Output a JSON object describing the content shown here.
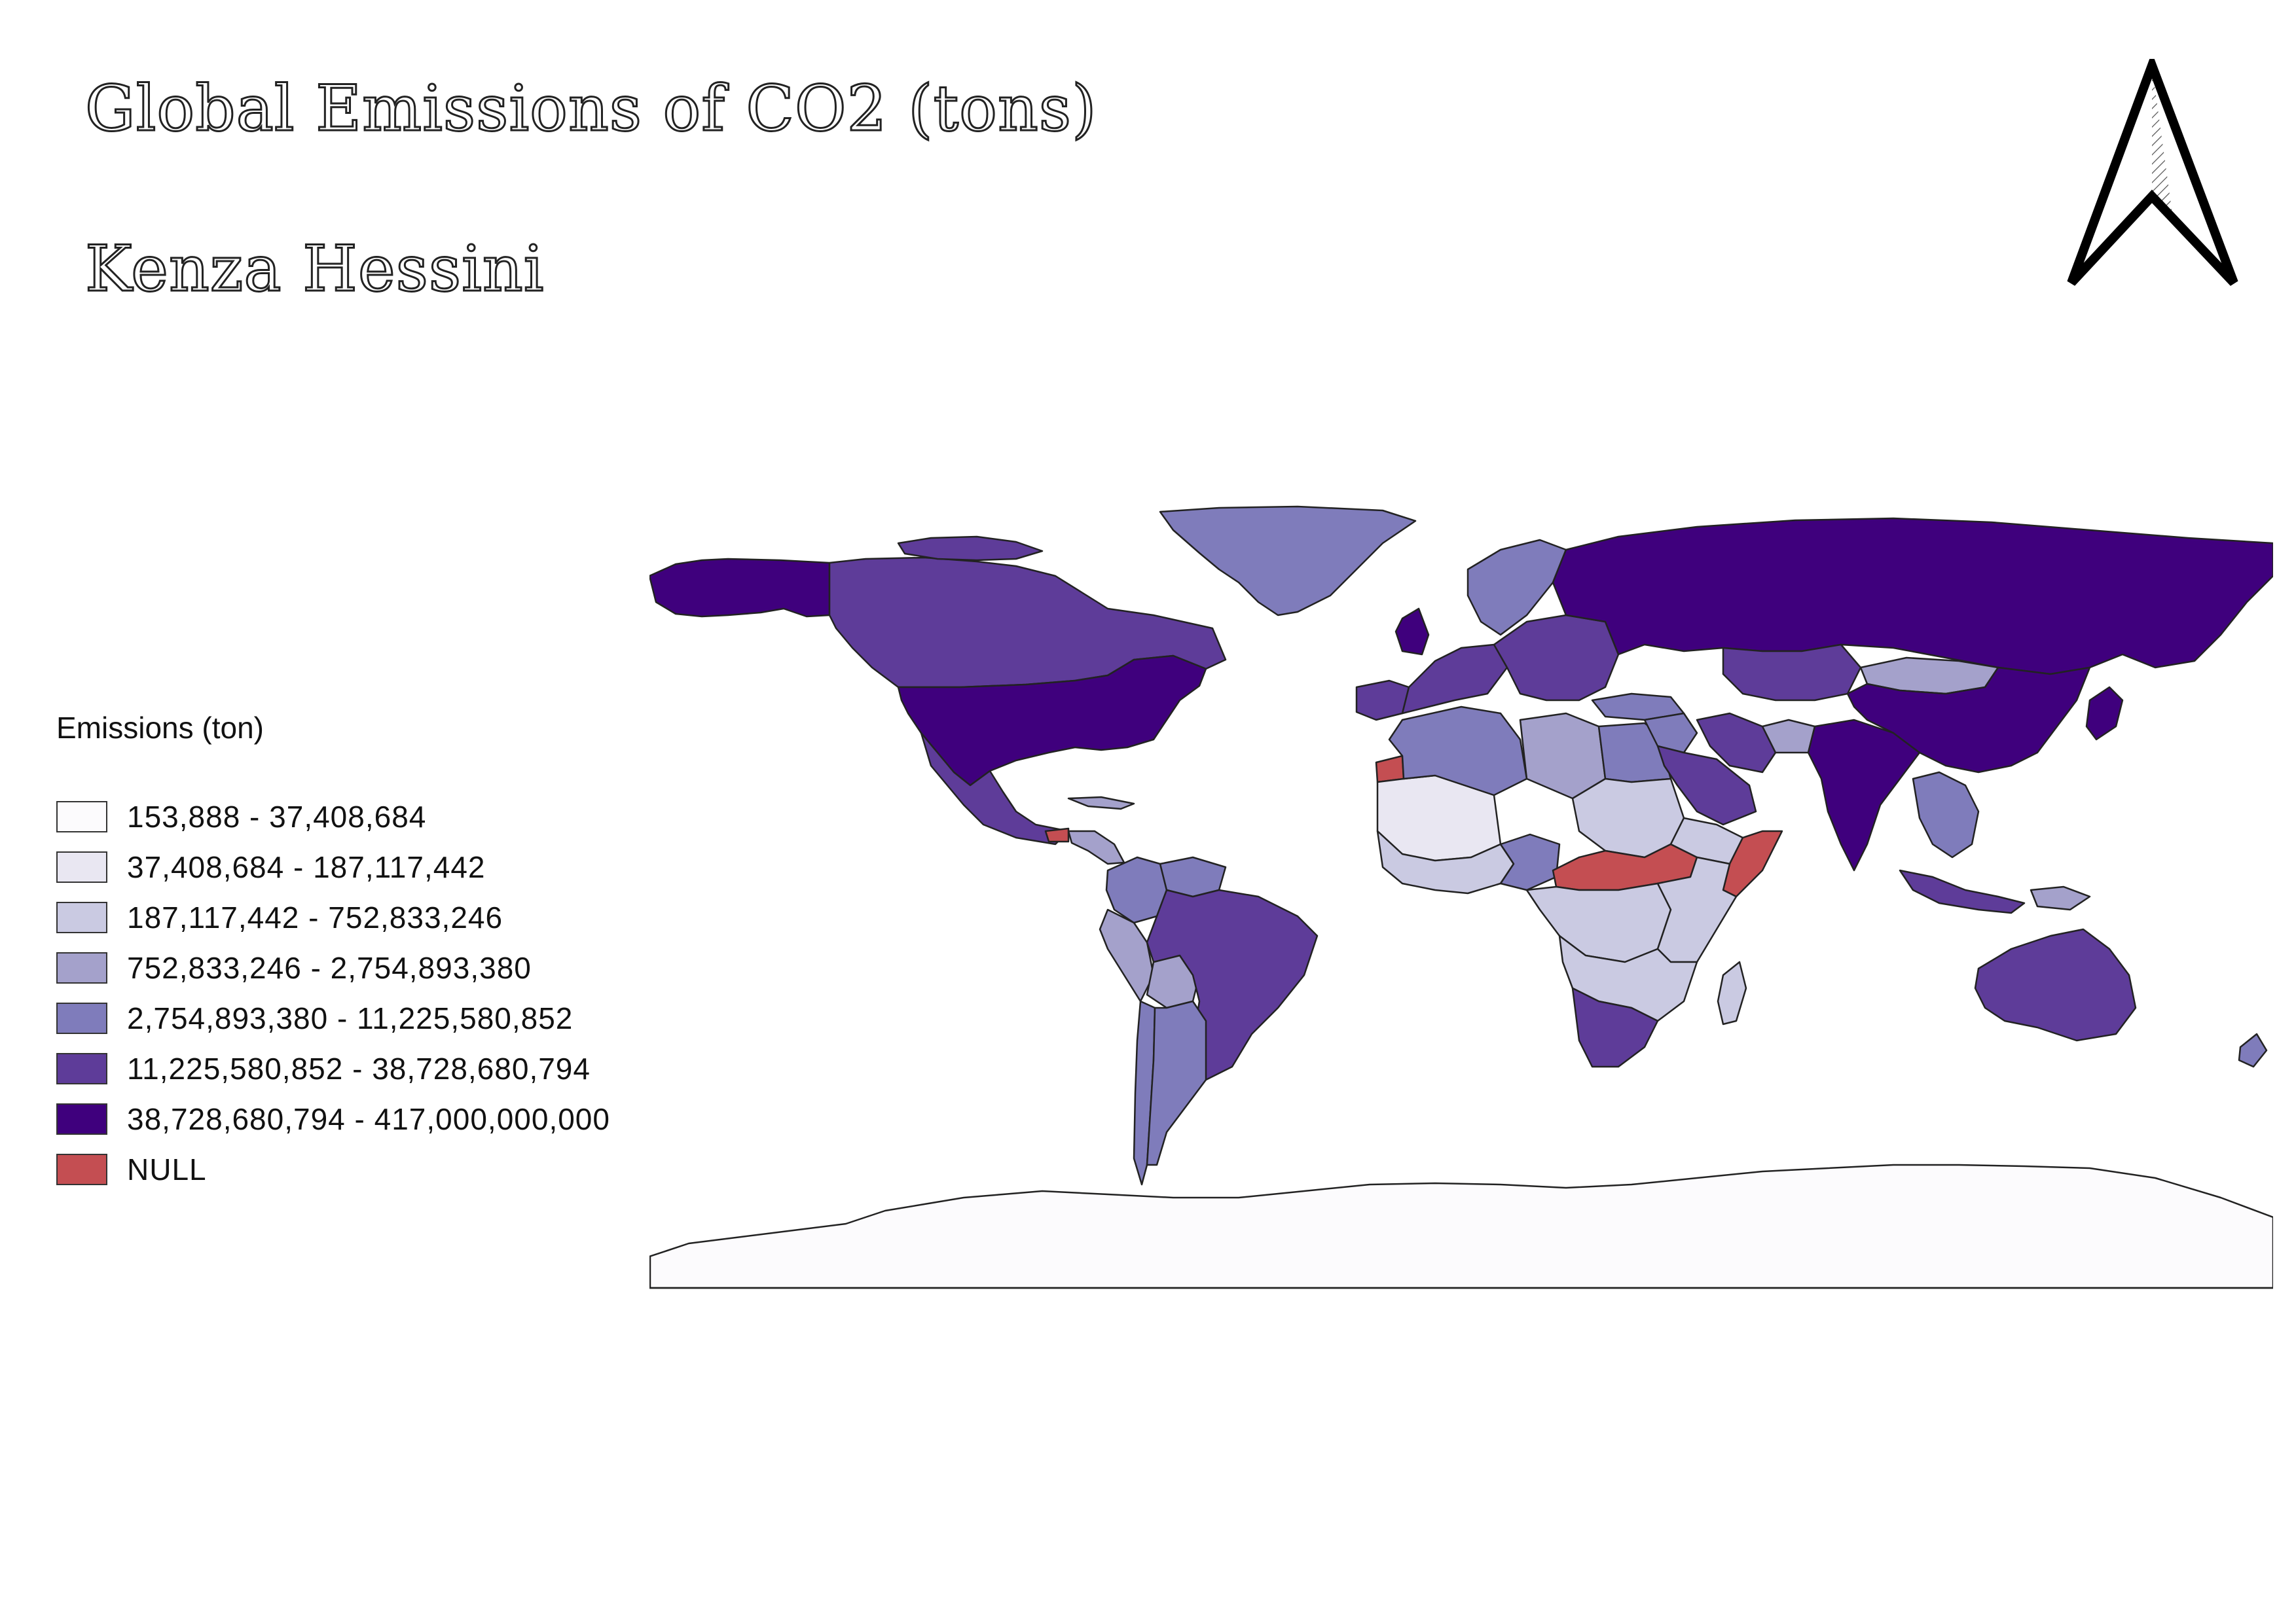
{
  "title": "Global Emissions of CO2 (tons)",
  "author": "Kenza Hessini",
  "north_arrow": {
    "icon": "north-arrow-icon"
  },
  "legend": {
    "title": "Emissions (ton)",
    "items": [
      {
        "label": "153,888 - 37,408,684",
        "color": "#fcfbfd"
      },
      {
        "label": "37,408,684 - 187,117,442",
        "color": "#e9e7f2"
      },
      {
        "label": "187,117,442 - 752,833,246",
        "color": "#cacae2"
      },
      {
        "label": "752,833,246 - 2,754,893,380",
        "color": "#a4a1cb"
      },
      {
        "label": "2,754,893,380 - 11,225,580,852",
        "color": "#7f7cbb"
      },
      {
        "label": "11,225,580,852 - 38,728,680,794",
        "color": "#5e3c99"
      },
      {
        "label": "38,728,680,794 - 417,000,000,000",
        "color": "#3f007d"
      },
      {
        "label": "NULL",
        "color": "#c44e52"
      }
    ]
  },
  "map": {
    "regions": [
      {
        "name": "alaska",
        "class": 6
      },
      {
        "name": "canada",
        "class": 5
      },
      {
        "name": "canadian-arctic-islands",
        "class": 5
      },
      {
        "name": "greenland",
        "class": 4
      },
      {
        "name": "united-states",
        "class": 6
      },
      {
        "name": "mexico",
        "class": 5
      },
      {
        "name": "guatemala",
        "class": 7
      },
      {
        "name": "central-america",
        "class": 3
      },
      {
        "name": "cuba",
        "class": 3
      },
      {
        "name": "colombia",
        "class": 4
      },
      {
        "name": "venezuela",
        "class": 4
      },
      {
        "name": "peru",
        "class": 3
      },
      {
        "name": "bolivia",
        "class": 3
      },
      {
        "name": "brazil",
        "class": 5
      },
      {
        "name": "chile",
        "class": 4
      },
      {
        "name": "argentina",
        "class": 4
      },
      {
        "name": "western-sahara",
        "class": 7
      },
      {
        "name": "mauritania-mali",
        "class": 1
      },
      {
        "name": "algeria",
        "class": 4
      },
      {
        "name": "libya",
        "class": 3
      },
      {
        "name": "egypt",
        "class": 4
      },
      {
        "name": "west-africa",
        "class": 2
      },
      {
        "name": "nigeria",
        "class": 4
      },
      {
        "name": "sudan",
        "class": 2
      },
      {
        "name": "central-african-belt",
        "class": 7
      },
      {
        "name": "ethiopia",
        "class": 2
      },
      {
        "name": "somalia",
        "class": 7
      },
      {
        "name": "congo-basin",
        "class": 2
      },
      {
        "name": "east-africa",
        "class": 2
      },
      {
        "name": "southern-africa",
        "class": 2
      },
      {
        "name": "south-africa",
        "class": 5
      },
      {
        "name": "madagascar",
        "class": 2
      },
      {
        "name": "iberia",
        "class": 5
      },
      {
        "name": "western-europe",
        "class": 5
      },
      {
        "name": "uk",
        "class": 6
      },
      {
        "name": "scandinavia",
        "class": 4
      },
      {
        "name": "eastern-europe",
        "class": 5
      },
      {
        "name": "russia",
        "class": 6
      },
      {
        "name": "turkey",
        "class": 4
      },
      {
        "name": "middle-east",
        "class": 4
      },
      {
        "name": "saudi-arabia",
        "class": 5
      },
      {
        "name": "iran",
        "class": 5
      },
      {
        "name": "kazakhstan",
        "class": 5
      },
      {
        "name": "afghanistan",
        "class": 3
      },
      {
        "name": "india",
        "class": 6
      },
      {
        "name": "mongolia",
        "class": 3
      },
      {
        "name": "china",
        "class": 6
      },
      {
        "name": "japan",
        "class": 6
      },
      {
        "name": "southeast-asia",
        "class": 4
      },
      {
        "name": "indonesia",
        "class": 5
      },
      {
        "name": "papua",
        "class": 3
      },
      {
        "name": "australia",
        "class": 5
      },
      {
        "name": "new-zealand",
        "class": 4
      },
      {
        "name": "antarctica",
        "class": 0
      }
    ]
  }
}
